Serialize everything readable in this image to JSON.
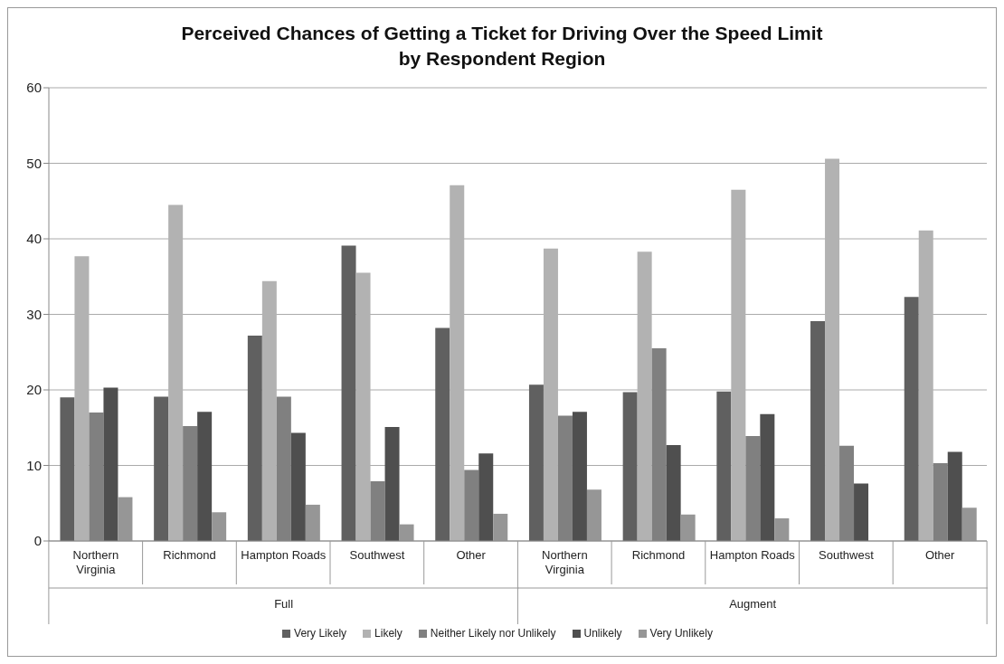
{
  "chart_data": {
    "type": "bar",
    "title": "Perceived Chances of Getting a Ticket for Driving Over the Speed Limit\nby Respondent Region",
    "categories": [
      "Northern Virginia",
      "Richmond",
      "Hampton Roads",
      "Southwest",
      "Other",
      "Northern Virginia",
      "Richmond",
      "Hampton Roads",
      "Southwest",
      "Other"
    ],
    "annotations": [
      "Full",
      "Augment"
    ],
    "series": [
      {
        "name": "Very Likely",
        "color": "#606060",
        "values": [
          19,
          19.1,
          27.2,
          39.1,
          28.2,
          20.7,
          19.7,
          19.8,
          29.1,
          32.3
        ]
      },
      {
        "name": "Likely",
        "color": "#b2b2b2",
        "values": [
          37.7,
          44.5,
          34.4,
          35.5,
          47.1,
          38.7,
          38.3,
          46.5,
          50.6,
          41.1
        ]
      },
      {
        "name": "Neither Likely nor Unlikely",
        "color": "#808080",
        "values": [
          17,
          15.2,
          19.1,
          7.9,
          9.4,
          16.6,
          25.5,
          13.9,
          12.6,
          10.3
        ]
      },
      {
        "name": "Unlikely",
        "color": "#4f4f4f",
        "values": [
          20.3,
          17.1,
          14.3,
          15.1,
          11.6,
          17.1,
          12.7,
          16.8,
          7.6,
          11.8
        ]
      },
      {
        "name": "Very Unlikely",
        "color": "#969696",
        "values": [
          5.8,
          3.8,
          4.8,
          2.2,
          3.6,
          6.8,
          3.5,
          3.0,
          null,
          4.4
        ]
      }
    ],
    "ylim": [
      0,
      60
    ],
    "yticks": [
      0,
      10,
      20,
      30,
      40,
      50,
      60
    ],
    "grid": "y",
    "legend": "bottom"
  }
}
